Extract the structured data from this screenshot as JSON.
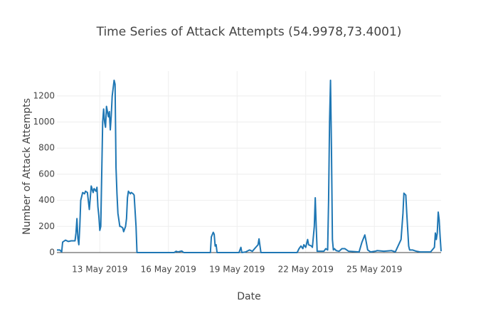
{
  "chart_data": {
    "type": "line",
    "title": "Time Series of Attack Attempts (54.9978,73.4001)",
    "x_label": "Date",
    "y_label": "Number of Attack Attempts",
    "x": [
      "2019-05-11T03:00",
      "2019-05-11T06:00",
      "2019-05-11T08:00",
      "2019-05-11T09:00",
      "2019-05-11T12:00",
      "2019-05-11T15:00",
      "2019-05-11T18:00",
      "2019-05-11T22:00",
      "2019-05-11T23:00",
      "2019-05-12T00:00",
      "2019-05-12T01:00",
      "2019-05-12T02:00",
      "2019-05-12T03:00",
      "2019-05-12T04:00",
      "2019-05-12T06:00",
      "2019-05-12T08:00",
      "2019-05-12T09:00",
      "2019-05-12T11:00",
      "2019-05-12T13:00",
      "2019-05-12T14:00",
      "2019-05-12T15:00",
      "2019-05-12T17:00",
      "2019-05-12T18:00",
      "2019-05-12T20:00",
      "2019-05-12T21:00",
      "2019-05-12T22:00",
      "2019-05-12T23:00",
      "2019-05-13T00:00",
      "2019-05-13T01:00",
      "2019-05-13T02:00",
      "2019-05-13T03:00",
      "2019-05-13T04:00",
      "2019-05-13T05:00",
      "2019-05-13T06:00",
      "2019-05-13T07:00",
      "2019-05-13T09:00",
      "2019-05-13T10:00",
      "2019-05-13T11:00",
      "2019-05-13T12:00",
      "2019-05-13T13:00",
      "2019-05-13T15:00",
      "2019-05-13T16:00",
      "2019-05-13T17:00",
      "2019-05-13T18:00",
      "2019-05-13T19:00",
      "2019-05-13T21:00",
      "2019-05-13T22:00",
      "2019-05-14T00:00",
      "2019-05-14T01:00",
      "2019-05-14T03:00",
      "2019-05-14T04:00",
      "2019-05-14T05:00",
      "2019-05-14T06:00",
      "2019-05-14T08:00",
      "2019-05-14T09:00",
      "2019-05-14T11:00",
      "2019-05-14T12:00",
      "2019-05-14T14:00",
      "2019-05-14T15:00",
      "2019-05-16T06:00",
      "2019-05-16T08:00",
      "2019-05-16T10:00",
      "2019-05-16T14:00",
      "2019-05-16T16:00",
      "2019-05-17T20:00",
      "2019-05-17T21:00",
      "2019-05-17T23:00",
      "2019-05-18T00:00",
      "2019-05-18T01:00",
      "2019-05-18T02:00",
      "2019-05-18T03:00",
      "2019-05-19T02:00",
      "2019-05-19T04:00",
      "2019-05-19T05:00",
      "2019-05-19T09:00",
      "2019-05-19T13:00",
      "2019-05-19T16:00",
      "2019-05-19T22:00",
      "2019-05-19T23:00",
      "2019-05-20T01:00",
      "2019-05-21T15:00",
      "2019-05-21T17:00",
      "2019-05-21T19:00",
      "2019-05-21T21:00",
      "2019-05-21T22:00",
      "2019-05-22T00:00",
      "2019-05-22T02:00",
      "2019-05-22T03:00",
      "2019-05-22T06:00",
      "2019-05-22T07:00",
      "2019-05-22T09:00",
      "2019-05-22T10:00",
      "2019-05-22T11:00",
      "2019-05-22T12:00",
      "2019-05-22T19:00",
      "2019-05-22T21:00",
      "2019-05-22T23:00",
      "2019-05-23T00:00",
      "2019-05-23T01:00",
      "2019-05-23T02:00",
      "2019-05-23T03:00",
      "2019-05-23T04:00",
      "2019-05-23T05:00",
      "2019-05-23T06:00",
      "2019-05-23T08:00",
      "2019-05-23T11:00",
      "2019-05-23T14:00",
      "2019-05-23T17:00",
      "2019-05-23T19:00",
      "2019-05-23T21:00",
      "2019-05-24T08:00",
      "2019-05-24T11:00",
      "2019-05-24T14:00",
      "2019-05-24T15:00",
      "2019-05-24T17:00",
      "2019-05-24T20:00",
      "2019-05-25T01:00",
      "2019-05-25T03:00",
      "2019-05-25T10:00",
      "2019-05-25T18:00",
      "2019-05-25T22:00",
      "2019-05-26T04:00",
      "2019-05-26T06:00",
      "2019-05-26T07:00",
      "2019-05-26T09:00",
      "2019-05-26T10:00",
      "2019-05-26T12:00",
      "2019-05-26T13:00",
      "2019-05-26T16:00",
      "2019-05-26T20:00",
      "2019-05-27T00:00",
      "2019-05-27T11:00",
      "2019-05-27T15:00",
      "2019-05-27T16:00",
      "2019-05-27T17:00",
      "2019-05-27T18:00",
      "2019-05-27T19:00",
      "2019-05-27T20:00",
      "2019-05-27T21:00",
      "2019-05-27T22:00"
    ],
    "values": [
      20,
      20,
      5,
      80,
      95,
      85,
      90,
      90,
      150,
      260,
      110,
      60,
      200,
      400,
      460,
      450,
      470,
      460,
      330,
      420,
      510,
      460,
      490,
      470,
      500,
      350,
      280,
      170,
      200,
      600,
      1000,
      1100,
      1000,
      960,
      1120,
      1040,
      1080,
      940,
      1050,
      1200,
      1320,
      1290,
      650,
      450,
      300,
      200,
      200,
      190,
      160,
      200,
      260,
      420,
      470,
      450,
      460,
      450,
      440,
      200,
      0,
      0,
      10,
      5,
      12,
      0,
      0,
      120,
      155,
      140,
      50,
      60,
      0,
      0,
      40,
      0,
      5,
      20,
      10,
      60,
      105,
      0,
      0,
      30,
      50,
      30,
      60,
      40,
      100,
      60,
      50,
      40,
      200,
      420,
      200,
      10,
      10,
      30,
      20,
      400,
      1000,
      1320,
      800,
      100,
      20,
      30,
      15,
      10,
      30,
      30,
      20,
      10,
      5,
      80,
      135,
      100,
      20,
      5,
      10,
      15,
      10,
      15,
      5,
      100,
      300,
      455,
      440,
      300,
      50,
      20,
      20,
      10,
      5,
      5,
      40,
      150,
      100,
      150,
      310,
      250,
      120,
      10
    ],
    "color": "#1f77b4",
    "xlim": [
      "2019-05-11T03:00",
      "2019-05-27T22:00"
    ],
    "xticks": [
      {
        "value": "2019-05-13T00:00",
        "label": "13 May 2019"
      },
      {
        "value": "2019-05-16T00:00",
        "label": "16 May 2019"
      },
      {
        "value": "2019-05-19T00:00",
        "label": "19 May 2019"
      },
      {
        "value": "2019-05-22T00:00",
        "label": "22 May 2019"
      },
      {
        "value": "2019-05-25T00:00",
        "label": "25 May 2019"
      }
    ],
    "ylim": [
      0,
      1390
    ],
    "yticks": [
      0,
      200,
      400,
      600,
      800,
      1000,
      1200
    ],
    "grid": true
  }
}
